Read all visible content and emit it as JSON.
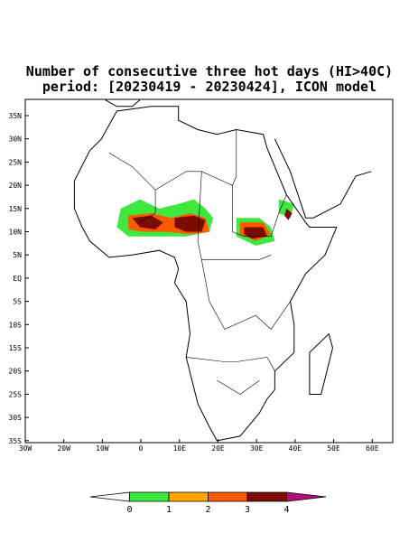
{
  "title": [
    "Number of consecutive three hot days (HI>40C)",
    "period: [20230419 - 20230424], ICON model"
  ],
  "map": {
    "lat_labels": [
      "35N",
      "30N",
      "25N",
      "20N",
      "15N",
      "10N",
      "5N",
      "EQ",
      "5S",
      "10S",
      "15S",
      "20S",
      "25S",
      "30S",
      "35S"
    ],
    "lon_labels": [
      "30W",
      "20W",
      "10W",
      "0",
      "10E",
      "20E",
      "30E",
      "40E",
      "50E",
      "60E"
    ]
  },
  "colorbar": {
    "levels": [
      0,
      1,
      2,
      3,
      4
    ],
    "colors": [
      "#ffffff",
      "#3fe83f",
      "#ffa500",
      "#ff5a00",
      "#7a0c00",
      "#b0107a"
    ]
  }
}
